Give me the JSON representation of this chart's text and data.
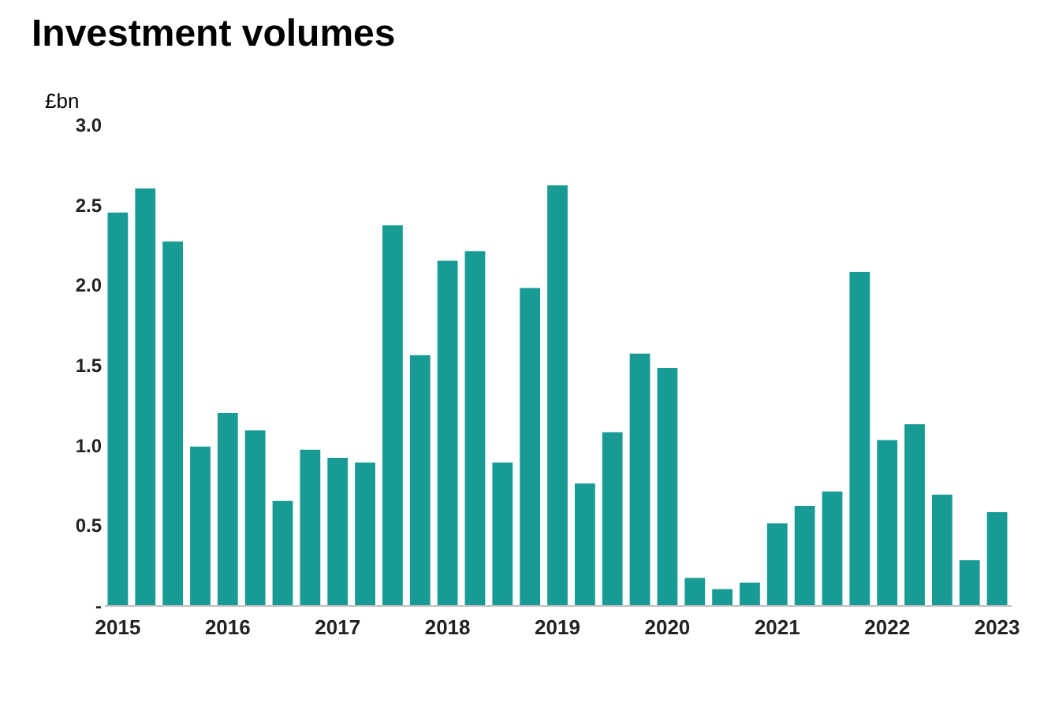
{
  "chart_data": {
    "type": "bar",
    "title": "Investment volumes",
    "ylabel": "£bn",
    "categories": [
      "2015",
      null,
      null,
      null,
      "2016",
      null,
      null,
      null,
      "2017",
      null,
      null,
      null,
      "2018",
      null,
      null,
      null,
      "2019",
      null,
      null,
      null,
      "2020",
      null,
      null,
      null,
      "2021",
      null,
      null,
      null,
      "2022",
      null,
      null,
      null,
      "2023"
    ],
    "values": [
      2.45,
      2.6,
      2.27,
      0.99,
      1.2,
      1.09,
      0.65,
      0.97,
      0.92,
      0.89,
      2.37,
      1.56,
      2.15,
      2.21,
      0.89,
      1.98,
      2.62,
      0.76,
      1.08,
      1.57,
      1.48,
      0.17,
      0.1,
      0.14,
      0.51,
      0.62,
      0.71,
      2.08,
      1.03,
      1.13,
      0.69,
      0.28,
      0.58
    ],
    "color": "#179b94",
    "ylim": [
      0,
      3
    ],
    "yticks": [
      {
        "value": 0,
        "label": "-"
      },
      {
        "value": 0.5,
        "label": "0.5"
      },
      {
        "value": 1,
        "label": "1.0"
      },
      {
        "value": 1.5,
        "label": "1.5"
      },
      {
        "value": 2,
        "label": "2.0"
      },
      {
        "value": 2.5,
        "label": "2.5"
      },
      {
        "value": 3,
        "label": "3.0"
      }
    ],
    "grid": false
  }
}
